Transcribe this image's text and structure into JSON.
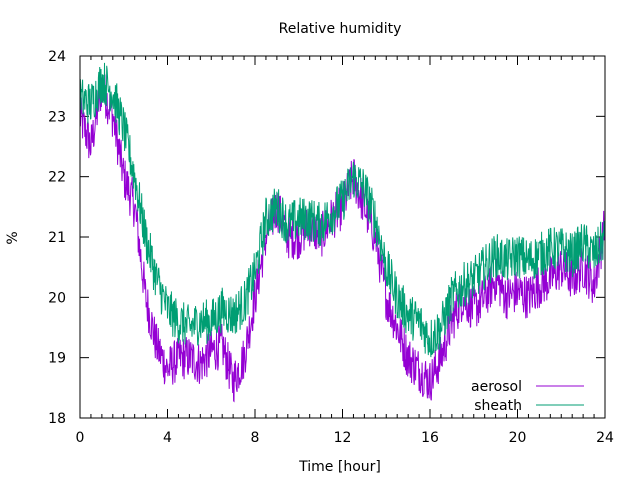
{
  "chart_data": {
    "type": "line",
    "title": "Relative humidity",
    "xlabel": "Time [hour]",
    "ylabel": "%",
    "xlim": [
      0,
      24
    ],
    "ylim": [
      18,
      24
    ],
    "x_ticks": [
      0,
      4,
      8,
      12,
      16,
      20,
      24
    ],
    "y_ticks": [
      18,
      19,
      20,
      21,
      22,
      23,
      24
    ],
    "x_tick_labels": [
      "0",
      "4",
      "8",
      "12",
      "16",
      "20",
      "24"
    ],
    "y_tick_labels": [
      "18",
      "19",
      "20",
      "21",
      "22",
      "23",
      "24"
    ],
    "grid": false,
    "legend_position": "bottom-right",
    "x_step": 1,
    "series": [
      {
        "name": "aerosol",
        "color": "#9400d3",
        "x": [
          0,
          0.5,
          1,
          1.5,
          2,
          2.5,
          3,
          3.5,
          4,
          4.5,
          5,
          5.5,
          6,
          6.5,
          7,
          7.5,
          8,
          8.5,
          9,
          9.5,
          10,
          10.5,
          11,
          11.5,
          12,
          12.5,
          13,
          13.5,
          14,
          14.5,
          15,
          15.5,
          16,
          16.5,
          17,
          17.5,
          18,
          18.5,
          19,
          19.5,
          20,
          20.5,
          21,
          21.5,
          22,
          22.5,
          23,
          23.5,
          24
        ],
        "values": [
          23.0,
          22.5,
          23.5,
          23.0,
          22.0,
          21.5,
          20.0,
          19.2,
          18.8,
          19.0,
          19.0,
          18.9,
          19.1,
          19.2,
          18.6,
          19.0,
          20.0,
          21.0,
          21.5,
          21.0,
          21.0,
          21.2,
          21.0,
          21.3,
          21.5,
          22.0,
          21.5,
          21.0,
          20.0,
          19.5,
          19.0,
          18.8,
          18.6,
          19.0,
          19.6,
          20.0,
          19.8,
          20.0,
          20.3,
          20.0,
          20.1,
          20.0,
          20.2,
          20.3,
          20.5,
          20.3,
          20.5,
          20.2,
          21.2
        ]
      },
      {
        "name": "sheath",
        "color": "#009e73",
        "x": [
          0,
          0.5,
          1,
          1.5,
          2,
          2.5,
          3,
          3.5,
          4,
          4.5,
          5,
          5.5,
          6,
          6.5,
          7,
          7.5,
          8,
          8.5,
          9,
          9.5,
          10,
          10.5,
          11,
          11.5,
          12,
          12.5,
          13,
          13.5,
          14,
          14.5,
          15,
          15.5,
          16,
          16.5,
          17,
          17.5,
          18,
          18.5,
          19,
          19.5,
          20,
          20.5,
          21,
          21.5,
          22,
          22.5,
          23,
          23.5,
          24
        ],
        "values": [
          23.3,
          23.2,
          23.6,
          23.4,
          22.8,
          22.0,
          21.0,
          20.3,
          19.8,
          19.6,
          19.5,
          19.6,
          19.6,
          19.8,
          19.7,
          19.9,
          20.4,
          21.3,
          21.5,
          21.2,
          21.3,
          21.3,
          21.2,
          21.4,
          21.6,
          22.0,
          21.8,
          21.3,
          20.5,
          20.0,
          19.7,
          19.6,
          19.3,
          19.5,
          20.0,
          20.2,
          20.3,
          20.5,
          20.7,
          20.6,
          20.7,
          20.6,
          20.7,
          20.8,
          20.8,
          20.7,
          20.9,
          20.7,
          21.0
        ]
      }
    ]
  }
}
